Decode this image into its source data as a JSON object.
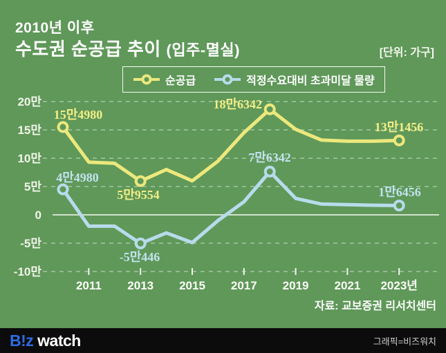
{
  "colors": {
    "background": "#5f9859",
    "yellow": "#ece87d",
    "blue": "#b7dbeb",
    "yellow_label": "#f3ee86",
    "blue_label": "#c3e2f0",
    "grid": "rgba(255,255,255,0.45)",
    "zero_line": "rgba(252,252,246,0.85)",
    "footer_bg": "#0c0c0c",
    "logo_blue": "#2e6be5"
  },
  "header": {
    "title_line1": "2010년 이후",
    "title_line2": "수도권 순공급 추이",
    "title_line2_sub": "(입주-멸실)",
    "unit_note": "[단위: 가구]"
  },
  "legend": {
    "items": [
      {
        "label": "순공급",
        "color": "#ece87d"
      },
      {
        "label": "적정수요대비 초과미달 물량",
        "color": "#b7dbeb"
      }
    ]
  },
  "chart_data": {
    "type": "line",
    "years": [
      2010,
      2011,
      2012,
      2013,
      2014,
      2015,
      2016,
      2017,
      2018,
      2019,
      2020,
      2021,
      2022,
      2023
    ],
    "series": [
      {
        "name": "순공급",
        "color": "#ece87d",
        "values": [
          154980,
          93000,
          91000,
          59554,
          80000,
          60000,
          95000,
          145000,
          186342,
          151000,
          132000,
          130000,
          130000,
          131456
        ]
      },
      {
        "name": "적정수요대비 초과미달 물량",
        "color": "#b7dbeb",
        "values": [
          44980,
          -20000,
          -20000,
          -50446,
          -32000,
          -49000,
          -10000,
          23000,
          76342,
          29000,
          19000,
          18000,
          17000,
          16456
        ]
      }
    ],
    "labeled_points": [
      {
        "series": 0,
        "year": 2010,
        "label": "15만4980"
      },
      {
        "series": 0,
        "year": 2013,
        "label": "5만9554"
      },
      {
        "series": 0,
        "year": 2018,
        "label": "18만6342"
      },
      {
        "series": 0,
        "year": 2023,
        "label": "13만1456"
      },
      {
        "series": 1,
        "year": 2010,
        "label": "4만4980"
      },
      {
        "series": 1,
        "year": 2013,
        "label": "-5만446"
      },
      {
        "series": 1,
        "year": 2018,
        "label": "7만6342"
      },
      {
        "series": 1,
        "year": 2023,
        "label": "1만6456"
      }
    ],
    "yticks": [
      {
        "value": 200000,
        "label": "20만"
      },
      {
        "value": 150000,
        "label": "15만"
      },
      {
        "value": 100000,
        "label": "10만"
      },
      {
        "value": 50000,
        "label": "5만"
      },
      {
        "value": 0,
        "label": "0"
      },
      {
        "value": -50000,
        "label": "-5만"
      },
      {
        "value": -100000,
        "label": "-10만"
      }
    ],
    "xticks": [
      {
        "year": 2011,
        "label": "2011"
      },
      {
        "year": 2013,
        "label": "2013"
      },
      {
        "year": 2015,
        "label": "2015"
      },
      {
        "year": 2017,
        "label": "2017"
      },
      {
        "year": 2019,
        "label": "2019"
      },
      {
        "year": 2021,
        "label": "2021"
      },
      {
        "year": 2023,
        "label": "2023년"
      }
    ],
    "ylim": [
      -100000,
      200000
    ],
    "grid": "dashed horizontal"
  },
  "source": "자료: 교보증권 리서치센터",
  "footer": {
    "logo_part1": "B!z",
    "logo_part2": "watch",
    "credit": "그래픽=비즈워치"
  }
}
